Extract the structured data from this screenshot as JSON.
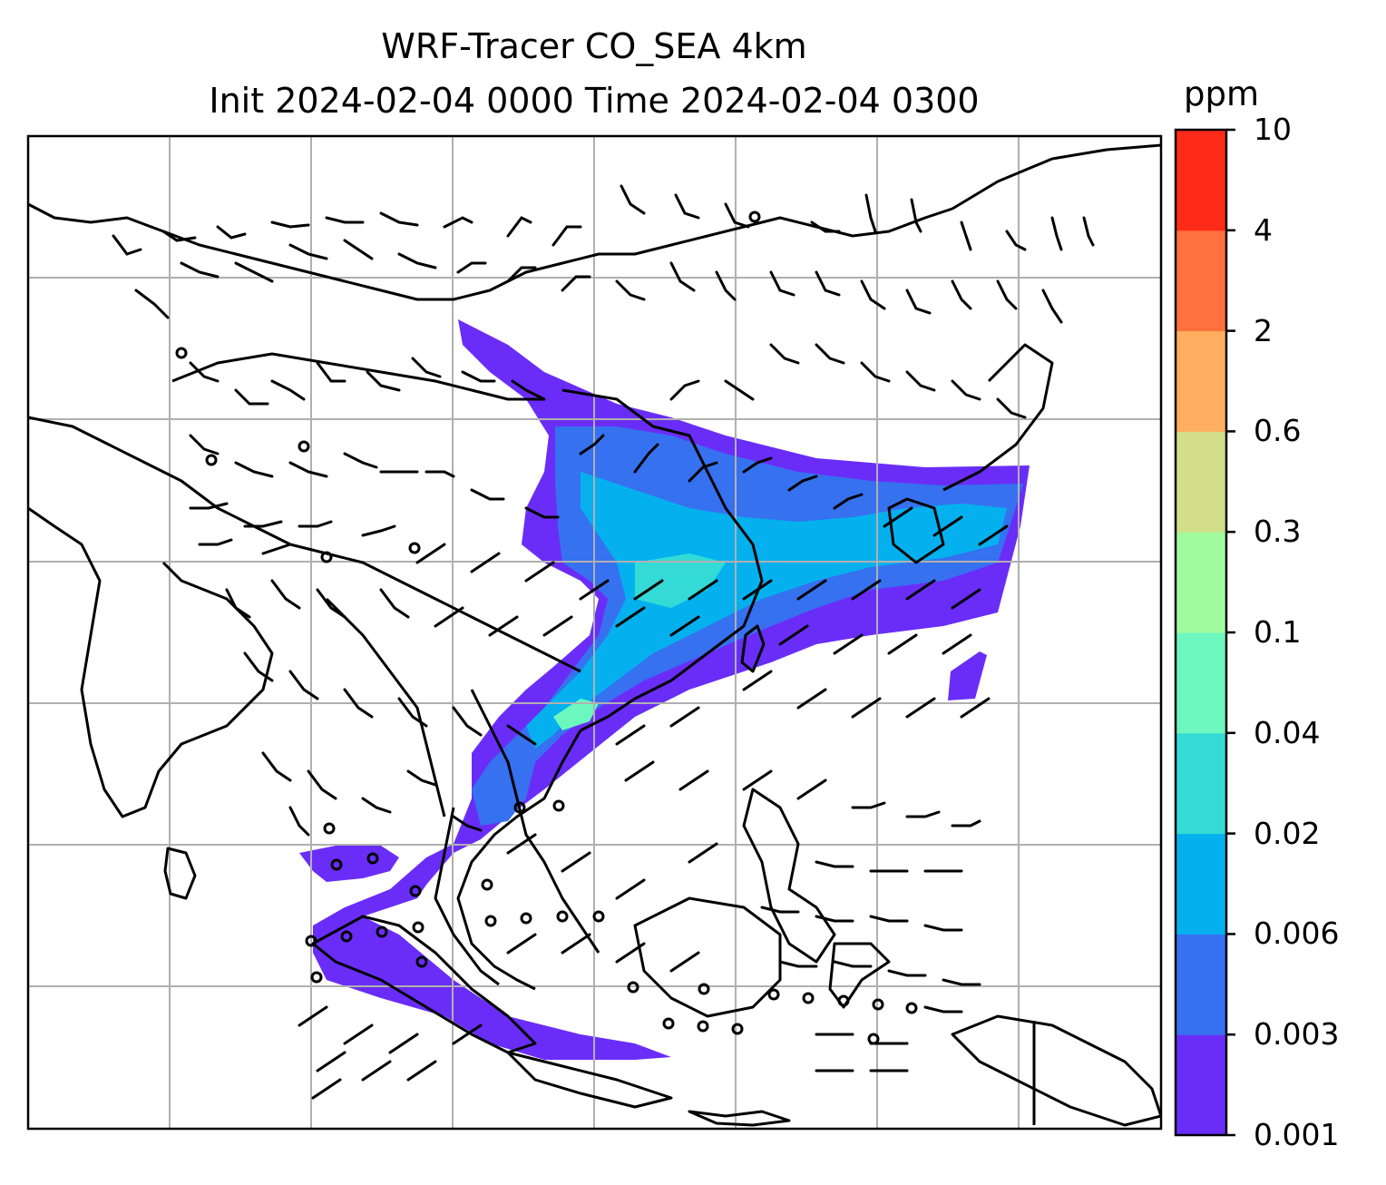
{
  "title": {
    "line1": "WRF-Tracer CO_SEA 4km",
    "line2": "Init 2024-02-04 0000 Time 2024-02-04 0300"
  },
  "colorbar": {
    "units": "ppm",
    "ticks": [
      "0.001",
      "0.003",
      "0.006",
      "0.02",
      "0.04",
      "0.1",
      "0.3",
      "0.6",
      "2",
      "4",
      "10"
    ],
    "colors": [
      "#6a2df8",
      "#3671f0",
      "#04b1ee",
      "#34dbd6",
      "#6cf7be",
      "#a0fb9e",
      "#d2df88",
      "#feae5e",
      "#ff713e",
      "#ff2a18"
    ]
  },
  "map": {
    "land_outline_color": "#000000",
    "gridline_color": "#b0b0b0",
    "wind_barb_color": "#000000"
  }
}
